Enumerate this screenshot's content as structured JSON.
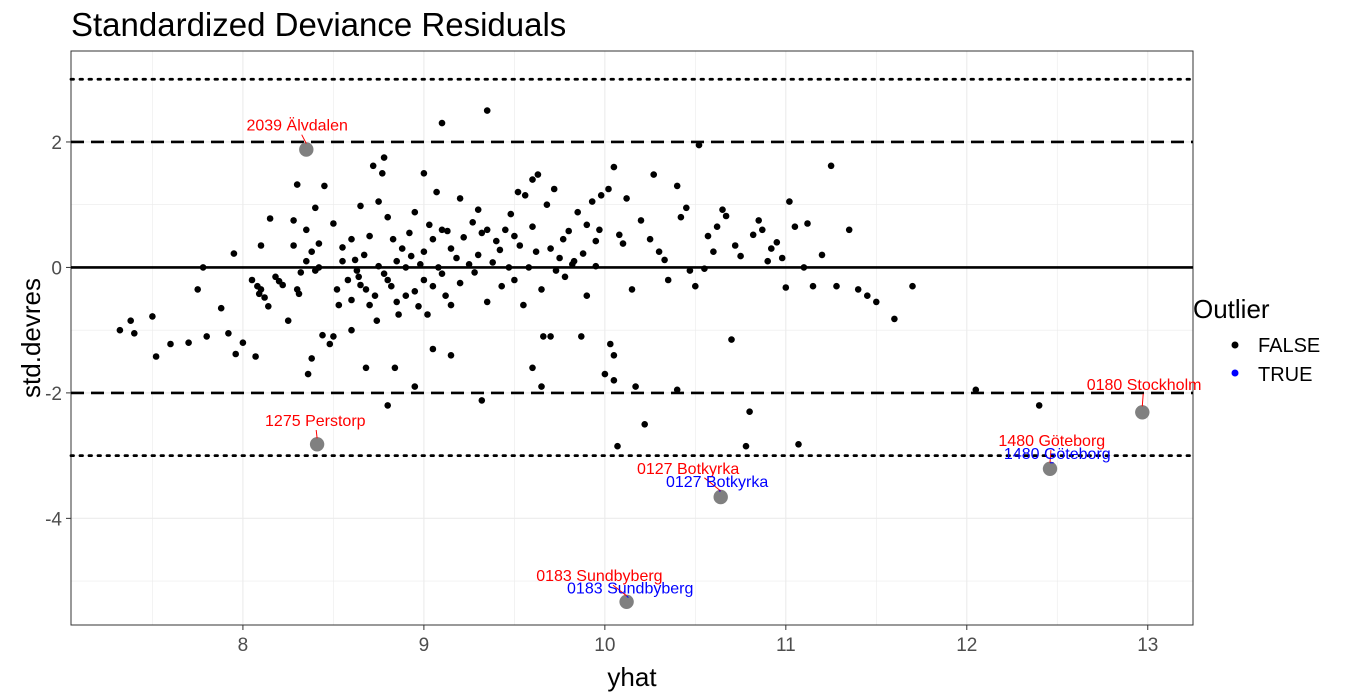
{
  "chart_data": {
    "type": "scatter",
    "title": "Standardized Deviance Residuals",
    "xlabel": "yhat",
    "ylabel": "std.devres",
    "xlim": [
      7.05,
      13.25
    ],
    "ylim": [
      -5.7,
      3.45
    ],
    "x_ticks": [
      8,
      9,
      10,
      11,
      12,
      13
    ],
    "y_ticks": [
      -4,
      -2,
      0,
      2
    ],
    "grid": true,
    "reference_lines": [
      {
        "y": 0,
        "style": "solid"
      },
      {
        "y": 2,
        "style": "dashed"
      },
      {
        "y": -2,
        "style": "dashed"
      },
      {
        "y": 3,
        "style": "dotted"
      },
      {
        "y": -3,
        "style": "dotted"
      }
    ],
    "legend": {
      "title": "Outlier",
      "placement": "right",
      "entries": [
        {
          "label": "FALSE",
          "color": "#000000"
        },
        {
          "label": "TRUE",
          "color": "#0000ff"
        }
      ]
    },
    "highlighted": [
      {
        "x": 8.35,
        "y": 1.88
      },
      {
        "x": 8.41,
        "y": -2.82
      },
      {
        "x": 10.64,
        "y": -3.66
      },
      {
        "x": 10.12,
        "y": -5.33
      },
      {
        "x": 12.46,
        "y": -3.21
      },
      {
        "x": 12.97,
        "y": -2.31
      }
    ],
    "annotations": [
      {
        "text": "2039 Älvdalen",
        "color": "#ff0000",
        "x": 8.3,
        "y": 2.18,
        "px": 8.35,
        "py": 1.88
      },
      {
        "text": "1275 Perstorp",
        "color": "#ff0000",
        "x": 8.4,
        "y": -2.53,
        "px": 8.41,
        "py": -2.82
      },
      {
        "text": "0127 Botkyrka",
        "color": "#ff0000",
        "x": 10.46,
        "y": -3.29,
        "px": 10.64,
        "py": -3.66
      },
      {
        "text": "0127 Botkyrka",
        "color": "#0000ff",
        "x": 10.62,
        "y": -3.5,
        "px": 10.64,
        "py": -3.66
      },
      {
        "text": "0183 Sundbyberg",
        "color": "#ff0000",
        "x": 9.97,
        "y": -5.0,
        "px": 10.12,
        "py": -5.33
      },
      {
        "text": "0183 Sundbyberg",
        "color": "#0000ff",
        "x": 10.14,
        "y": -5.2,
        "px": 10.12,
        "py": -5.33
      },
      {
        "text": "1480 Göteborg",
        "color": "#ff0000",
        "x": 12.47,
        "y": -2.85,
        "px": 12.46,
        "py": -3.21
      },
      {
        "text": "1480 Göteborg",
        "color": "#0000ff",
        "x": 12.5,
        "y": -3.05,
        "px": 12.46,
        "py": -3.21
      },
      {
        "text": "0180 Stockholm",
        "color": "#ff0000",
        "x": 12.98,
        "y": -1.95,
        "px": 12.97,
        "py": -2.31
      }
    ],
    "points": [
      [
        7.32,
        -1.0
      ],
      [
        7.38,
        -0.85
      ],
      [
        7.4,
        -1.05
      ],
      [
        7.5,
        -0.78
      ],
      [
        7.52,
        -1.42
      ],
      [
        7.6,
        -1.22
      ],
      [
        7.7,
        -1.2
      ],
      [
        7.75,
        -0.35
      ],
      [
        7.78,
        0.0
      ],
      [
        7.8,
        -1.1
      ],
      [
        7.88,
        -0.65
      ],
      [
        7.92,
        -1.05
      ],
      [
        7.95,
        0.22
      ],
      [
        7.96,
        -1.38
      ],
      [
        8.0,
        -1.2
      ],
      [
        8.05,
        -0.2
      ],
      [
        8.07,
        -1.42
      ],
      [
        8.08,
        -0.3
      ],
      [
        8.09,
        -0.42
      ],
      [
        8.1,
        -0.35
      ],
      [
        8.1,
        0.35
      ],
      [
        8.12,
        -0.48
      ],
      [
        8.14,
        -0.62
      ],
      [
        8.15,
        0.78
      ],
      [
        8.18,
        -0.15
      ],
      [
        8.2,
        -0.22
      ],
      [
        8.22,
        -0.28
      ],
      [
        8.25,
        -0.85
      ],
      [
        8.28,
        0.75
      ],
      [
        8.28,
        0.35
      ],
      [
        8.3,
        1.32
      ],
      [
        8.3,
        -0.35
      ],
      [
        8.31,
        -0.42
      ],
      [
        8.32,
        -0.08
      ],
      [
        8.35,
        0.6
      ],
      [
        8.35,
        0.1
      ],
      [
        8.36,
        -1.7
      ],
      [
        8.38,
        -1.45
      ],
      [
        8.38,
        0.25
      ],
      [
        8.4,
        0.95
      ],
      [
        8.4,
        -0.05
      ],
      [
        8.42,
        0.0
      ],
      [
        8.42,
        0.38
      ],
      [
        8.44,
        -1.08
      ],
      [
        8.45,
        1.3
      ],
      [
        8.48,
        -1.22
      ],
      [
        8.5,
        0.7
      ],
      [
        8.5,
        -1.1
      ],
      [
        8.52,
        -0.35
      ],
      [
        8.53,
        -0.6
      ],
      [
        8.55,
        0.1
      ],
      [
        8.55,
        0.32
      ],
      [
        8.58,
        -0.2
      ],
      [
        8.6,
        0.45
      ],
      [
        8.6,
        -0.52
      ],
      [
        8.62,
        0.12
      ],
      [
        8.63,
        -0.05
      ],
      [
        8.64,
        -0.15
      ],
      [
        8.65,
        -0.28
      ],
      [
        8.65,
        0.98
      ],
      [
        8.67,
        0.2
      ],
      [
        8.68,
        -0.35
      ],
      [
        8.7,
        -0.6
      ],
      [
        8.7,
        0.5
      ],
      [
        8.72,
        1.62
      ],
      [
        8.73,
        -0.45
      ],
      [
        8.74,
        -0.85
      ],
      [
        8.75,
        1.05
      ],
      [
        8.75,
        0.02
      ],
      [
        8.77,
        1.5
      ],
      [
        8.78,
        1.75
      ],
      [
        8.78,
        -0.1
      ],
      [
        8.8,
        0.8
      ],
      [
        8.8,
        -0.2
      ],
      [
        8.82,
        -0.3
      ],
      [
        8.83,
        0.45
      ],
      [
        8.84,
        -1.6
      ],
      [
        8.85,
        0.1
      ],
      [
        8.85,
        -0.55
      ],
      [
        8.86,
        -0.75
      ],
      [
        8.88,
        0.3
      ],
      [
        8.9,
        0.0
      ],
      [
        8.9,
        -0.45
      ],
      [
        8.92,
        0.55
      ],
      [
        8.93,
        0.18
      ],
      [
        8.95,
        0.88
      ],
      [
        8.95,
        -0.38
      ],
      [
        8.97,
        -0.62
      ],
      [
        8.98,
        0.05
      ],
      [
        9.0,
        0.25
      ],
      [
        9.0,
        1.5
      ],
      [
        9.0,
        -0.2
      ],
      [
        9.02,
        -0.75
      ],
      [
        9.03,
        0.68
      ],
      [
        9.05,
        0.45
      ],
      [
        9.05,
        -0.3
      ],
      [
        9.07,
        1.2
      ],
      [
        9.08,
        0.0
      ],
      [
        9.1,
        0.6
      ],
      [
        9.1,
        -0.1
      ],
      [
        9.12,
        -0.45
      ],
      [
        9.13,
        0.58
      ],
      [
        9.15,
        0.3
      ],
      [
        9.15,
        -0.6
      ],
      [
        9.18,
        0.15
      ],
      [
        9.2,
        1.1
      ],
      [
        9.2,
        -0.25
      ],
      [
        9.22,
        0.48
      ],
      [
        9.25,
        0.05
      ],
      [
        9.27,
        0.72
      ],
      [
        9.28,
        -0.08
      ],
      [
        9.3,
        0.92
      ],
      [
        9.3,
        0.2
      ],
      [
        9.32,
        0.55
      ],
      [
        9.35,
        0.6
      ],
      [
        9.35,
        -0.55
      ],
      [
        9.38,
        0.08
      ],
      [
        9.4,
        0.42
      ],
      [
        9.42,
        0.28
      ],
      [
        9.43,
        -0.3
      ],
      [
        9.45,
        0.6
      ],
      [
        9.47,
        0.0
      ],
      [
        9.48,
        0.85
      ],
      [
        9.5,
        0.5
      ],
      [
        9.5,
        -0.2
      ],
      [
        9.52,
        1.2
      ],
      [
        9.53,
        0.35
      ],
      [
        9.55,
        -0.6
      ],
      [
        9.56,
        1.15
      ],
      [
        9.58,
        0.0
      ],
      [
        9.6,
        0.65
      ],
      [
        9.6,
        1.4
      ],
      [
        9.62,
        0.25
      ],
      [
        9.63,
        1.48
      ],
      [
        9.65,
        -0.35
      ],
      [
        9.66,
        -1.1
      ],
      [
        9.68,
        1.0
      ],
      [
        9.7,
        0.3
      ],
      [
        9.72,
        1.25
      ],
      [
        9.73,
        -0.05
      ],
      [
        9.75,
        0.15
      ],
      [
        9.77,
        0.45
      ],
      [
        9.78,
        -0.15
      ],
      [
        9.8,
        0.58
      ],
      [
        9.82,
        0.05
      ],
      [
        9.83,
        0.1
      ],
      [
        9.85,
        0.88
      ],
      [
        9.87,
        -1.1
      ],
      [
        9.88,
        0.22
      ],
      [
        9.9,
        0.68
      ],
      [
        9.9,
        -0.45
      ],
      [
        9.93,
        1.05
      ],
      [
        9.95,
        0.42
      ],
      [
        9.95,
        0.02
      ],
      [
        9.97,
        0.6
      ],
      [
        9.98,
        1.15
      ],
      [
        10.0,
        -1.7
      ],
      [
        10.02,
        1.25
      ],
      [
        10.03,
        -1.22
      ],
      [
        10.05,
        -1.4
      ],
      [
        10.05,
        1.6
      ],
      [
        10.07,
        -2.85
      ],
      [
        10.08,
        0.52
      ],
      [
        10.1,
        0.38
      ],
      [
        10.12,
        1.1
      ],
      [
        10.15,
        -0.35
      ],
      [
        10.17,
        -1.9
      ],
      [
        10.2,
        0.75
      ],
      [
        10.22,
        -2.5
      ],
      [
        10.25,
        0.45
      ],
      [
        10.27,
        1.48
      ],
      [
        10.3,
        0.25
      ],
      [
        10.33,
        0.12
      ],
      [
        10.35,
        -0.2
      ],
      [
        10.4,
        1.3
      ],
      [
        10.42,
        0.8
      ],
      [
        10.45,
        0.95
      ],
      [
        10.47,
        -0.05
      ],
      [
        10.5,
        -0.3
      ],
      [
        10.52,
        1.95
      ],
      [
        10.55,
        -0.02
      ],
      [
        10.57,
        0.5
      ],
      [
        10.6,
        0.25
      ],
      [
        10.62,
        0.65
      ],
      [
        10.65,
        0.92
      ],
      [
        10.67,
        0.82
      ],
      [
        10.7,
        -1.15
      ],
      [
        10.72,
        0.35
      ],
      [
        10.75,
        0.18
      ],
      [
        10.78,
        -2.85
      ],
      [
        10.8,
        -2.3
      ],
      [
        10.82,
        0.52
      ],
      [
        10.85,
        0.75
      ],
      [
        10.87,
        0.6
      ],
      [
        10.9,
        0.1
      ],
      [
        10.92,
        0.3
      ],
      [
        10.95,
        0.4
      ],
      [
        10.98,
        0.15
      ],
      [
        11.0,
        -0.32
      ],
      [
        11.02,
        1.05
      ],
      [
        11.05,
        0.65
      ],
      [
        11.07,
        -2.82
      ],
      [
        11.1,
        0.0
      ],
      [
        11.12,
        0.7
      ],
      [
        11.15,
        -0.3
      ],
      [
        11.2,
        0.2
      ],
      [
        11.25,
        1.62
      ],
      [
        11.28,
        -0.3
      ],
      [
        11.35,
        0.6
      ],
      [
        11.4,
        -0.35
      ],
      [
        11.45,
        -0.45
      ],
      [
        11.5,
        -0.55
      ],
      [
        11.6,
        -0.82
      ],
      [
        11.7,
        -0.3
      ],
      [
        12.05,
        -1.95
      ],
      [
        12.4,
        -2.2
      ],
      [
        9.1,
        2.3
      ],
      [
        9.35,
        2.5
      ],
      [
        8.8,
        -2.2
      ],
      [
        9.32,
        -2.12
      ],
      [
        8.95,
        -1.9
      ],
      [
        9.65,
        -1.9
      ],
      [
        9.6,
        -1.6
      ],
      [
        9.05,
        -1.3
      ],
      [
        9.15,
        -1.4
      ],
      [
        8.68,
        -1.6
      ],
      [
        10.05,
        -1.8
      ],
      [
        8.6,
        -1.0
      ],
      [
        9.7,
        -1.1
      ],
      [
        10.4,
        -1.95
      ]
    ]
  }
}
